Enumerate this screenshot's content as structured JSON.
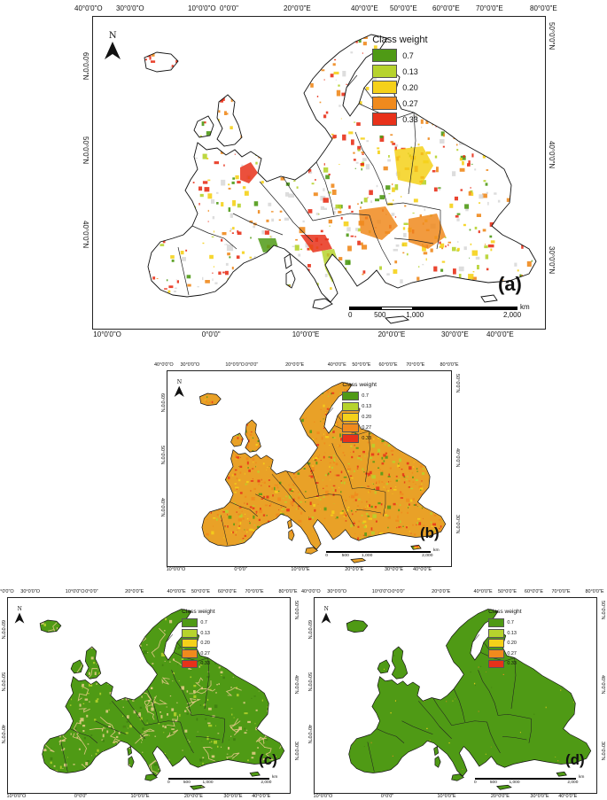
{
  "legend": {
    "title": "Class  weight",
    "items": [
      {
        "label": "0.7",
        "color": "#4f9a15"
      },
      {
        "label": "0.13",
        "color": "#b6d32d"
      },
      {
        "label": "0.20",
        "color": "#f5d11a"
      },
      {
        "label": "0.27",
        "color": "#f08a1d"
      },
      {
        "label": "0.33",
        "color": "#e8311a"
      }
    ]
  },
  "north_label": "N",
  "graticule": {
    "top": [
      "40°0'0\"O",
      "30°0'0\"O",
      "10°0'0\"O",
      "0°0'0\"",
      "20°0'0\"E",
      "40°0'0\"E",
      "50°0'0\"E",
      "60°0'0\"E",
      "70°0'0\"E",
      "80°0'0\"E"
    ],
    "bottom": [
      "10°0'0\"O",
      "0°0'0\"",
      "10°0'0\"E",
      "20°0'0\"E",
      "30°0'0\"E",
      "40°0'0\"E"
    ],
    "left": [
      "60°0'0\"N",
      "50°0'0\"N",
      "40°0'0\"N"
    ],
    "right": [
      "50°0'0\"N",
      "40°0'0\"N",
      "30°0'0\"N"
    ]
  },
  "scalebar": {
    "labels": [
      "0",
      "500",
      "1,000",
      "2,000"
    ],
    "unit": "km"
  },
  "panels": [
    {
      "label": "(a)",
      "fill": "sparse"
    },
    {
      "label": "(b)",
      "fill": "dense"
    },
    {
      "label": "(c)",
      "fill": "green-mixed"
    },
    {
      "label": "(d)",
      "fill": "green"
    }
  ]
}
